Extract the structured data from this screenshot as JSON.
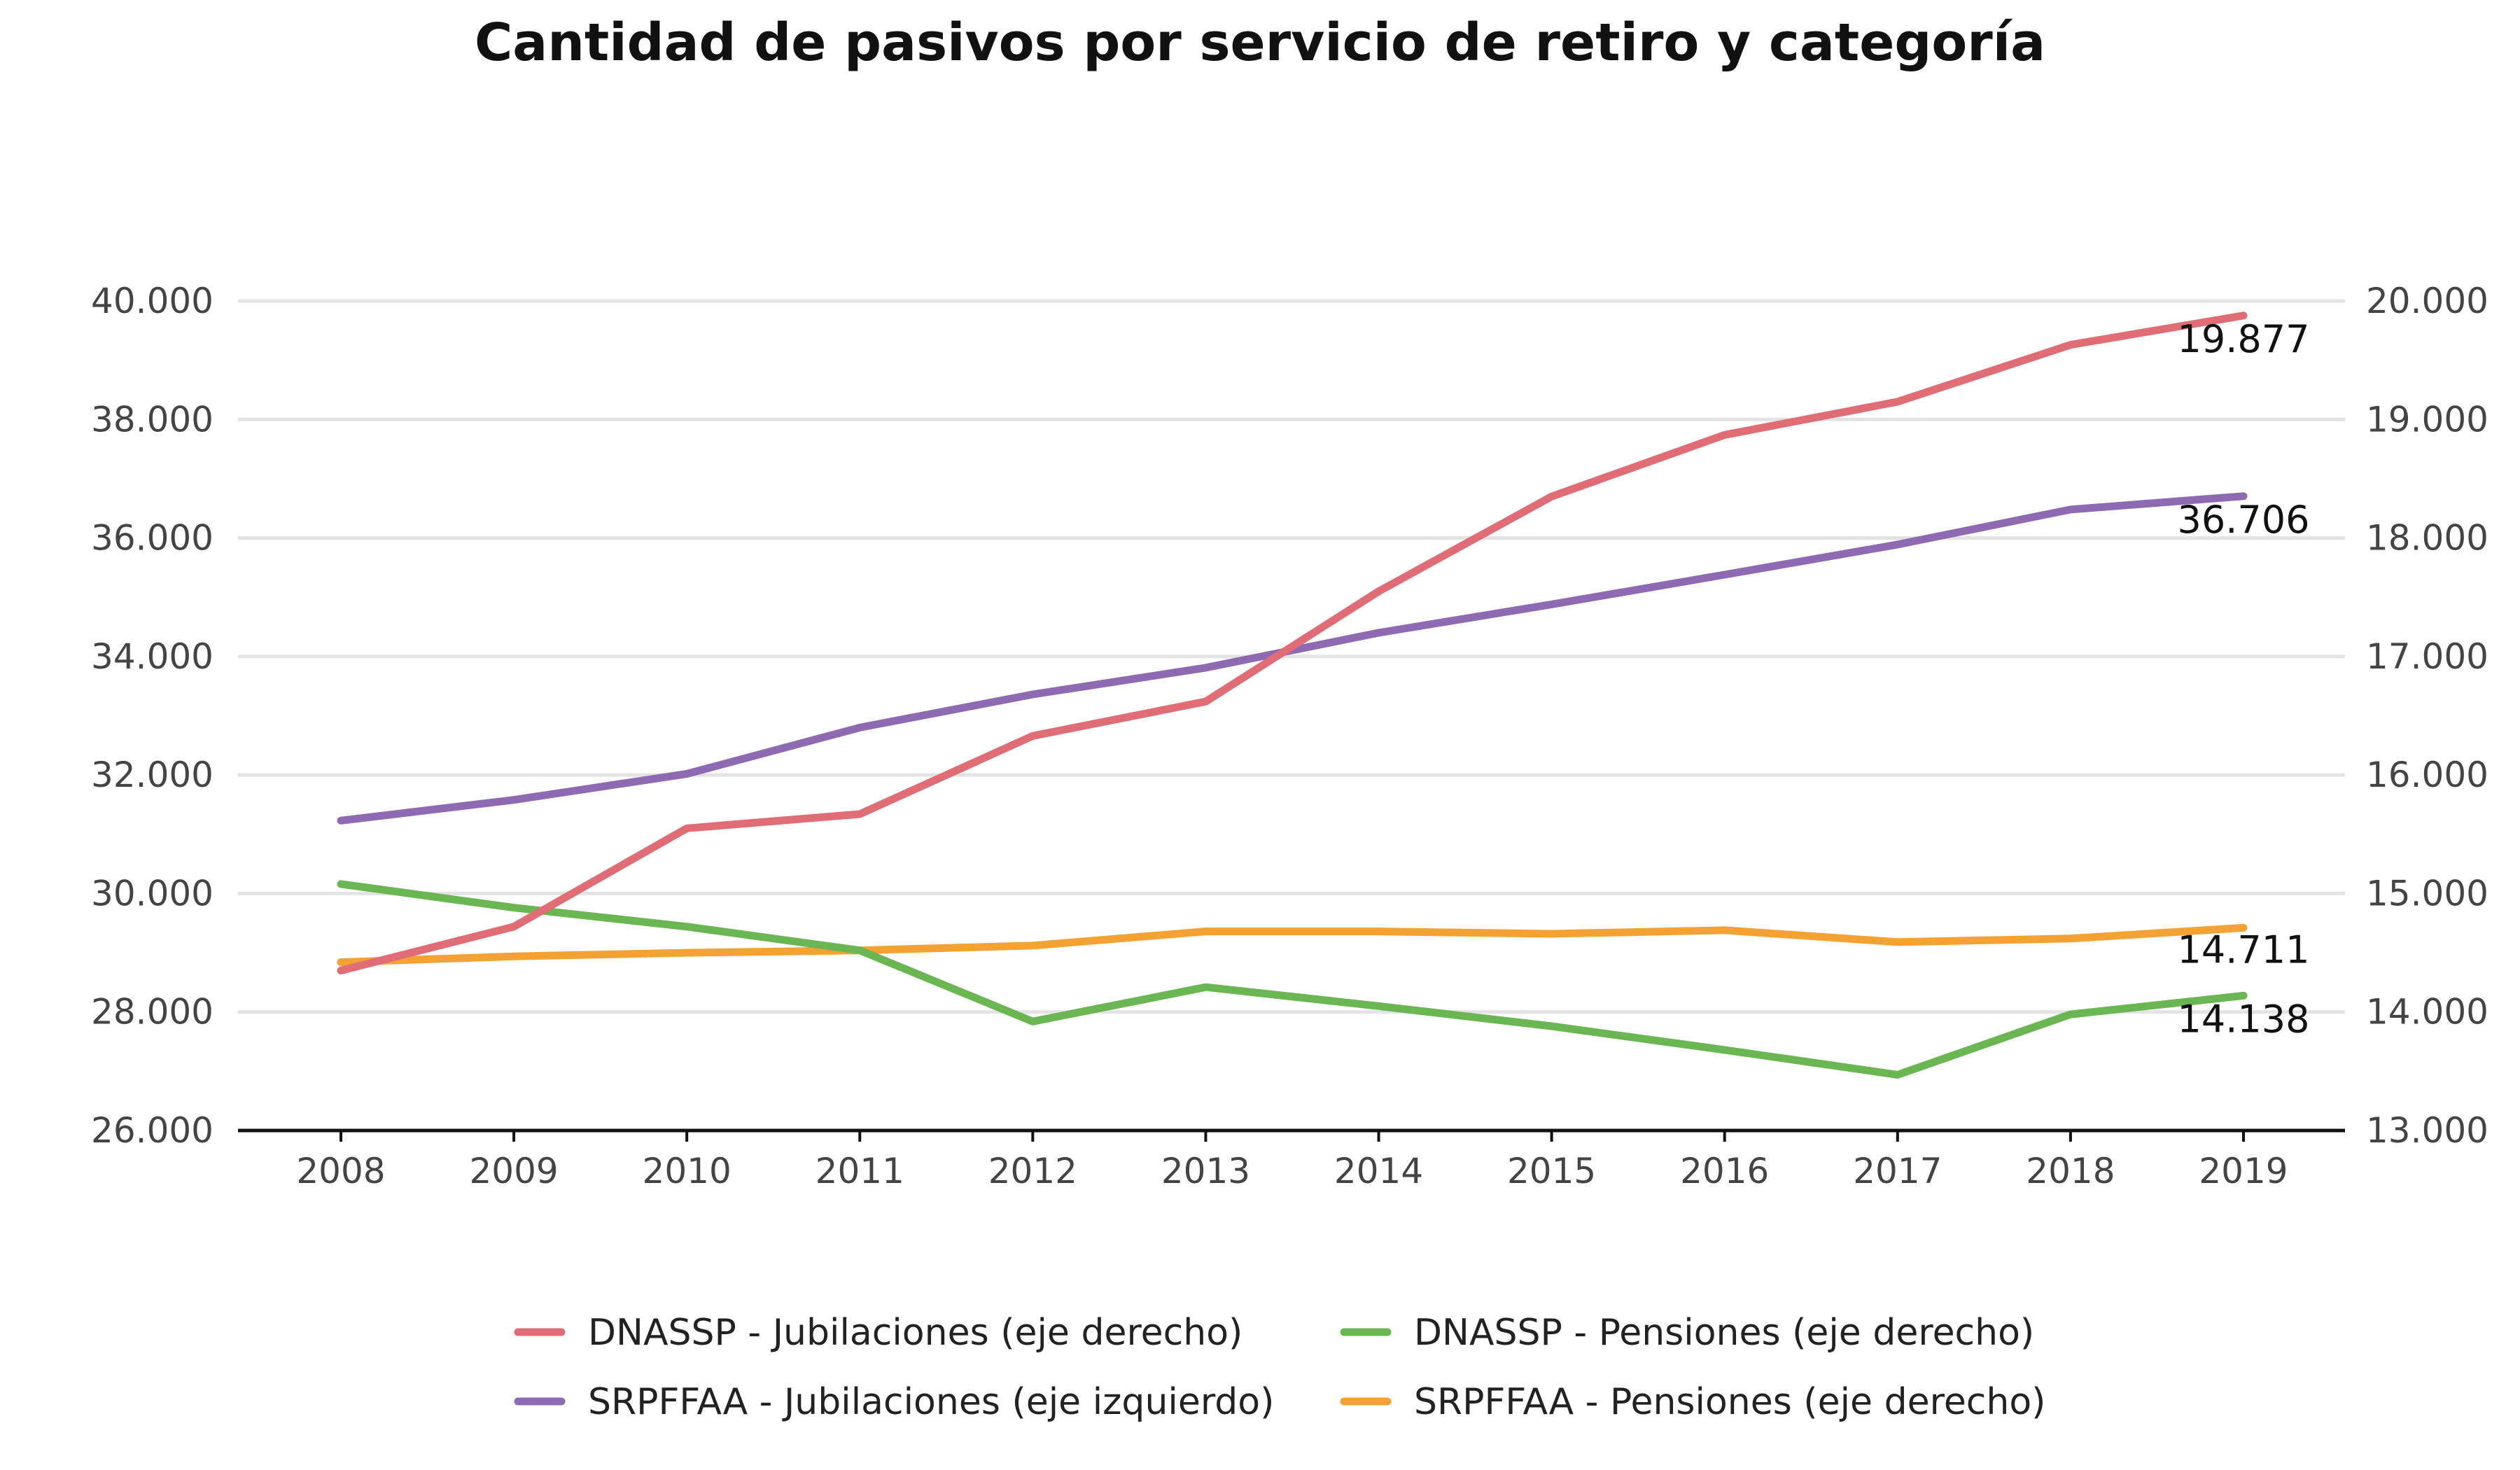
{
  "chart_data": {
    "type": "line",
    "title": "Cantidad de pasivos por servicio de retiro y categoría",
    "categories": [
      "2008",
      "2009",
      "2010",
      "2011",
      "2012",
      "2013",
      "2014",
      "2015",
      "2016",
      "2017",
      "2018",
      "2019"
    ],
    "y_left": {
      "ticks": [
        "26.000",
        "28.000",
        "30.000",
        "32.000",
        "34.000",
        "36.000",
        "38.000",
        "40.000"
      ],
      "ylim": [
        26000,
        40000
      ],
      "step": 2000
    },
    "y_right": {
      "ticks": [
        "13.000",
        "14.000",
        "15.000",
        "16.000",
        "17.000",
        "18.000",
        "19.000",
        "20.000"
      ],
      "ylim": [
        13000,
        20000
      ],
      "step": 1000
    },
    "grid": true,
    "legend_position": "bottom",
    "series": [
      {
        "name": "DNASSP - Jubilaciones (eje derecho)",
        "axis": "right",
        "color": "#e06c75",
        "values": [
          14350,
          14720,
          15550,
          15670,
          16330,
          16620,
          17550,
          18350,
          18870,
          19150,
          19630,
          19877
        ],
        "end_label": "19.877"
      },
      {
        "name": "DNASSP - Pensiones (eje derecho)",
        "axis": "right",
        "color": "#6ab652",
        "values": [
          15080,
          14880,
          14720,
          14520,
          13920,
          14210,
          14050,
          13880,
          13680,
          13470,
          13980,
          14138
        ],
        "end_label": "14.138"
      },
      {
        "name": "SRPFFAA - Jubilaciones (eje izquierdo)",
        "axis": "left",
        "color": "#8e6ab3",
        "values": [
          31230,
          31580,
          32020,
          32800,
          33360,
          33810,
          34400,
          34880,
          35380,
          35890,
          36480,
          36706
        ],
        "end_label": "36.706"
      },
      {
        "name": "SRPFFAA - Pensiones (eje derecho)",
        "axis": "right",
        "color": "#f5a234",
        "values": [
          14420,
          14470,
          14500,
          14520,
          14560,
          14680,
          14680,
          14660,
          14690,
          14590,
          14620,
          14711
        ],
        "end_label": "14.711"
      }
    ],
    "legend_order": [
      0,
      1,
      2,
      3
    ]
  }
}
